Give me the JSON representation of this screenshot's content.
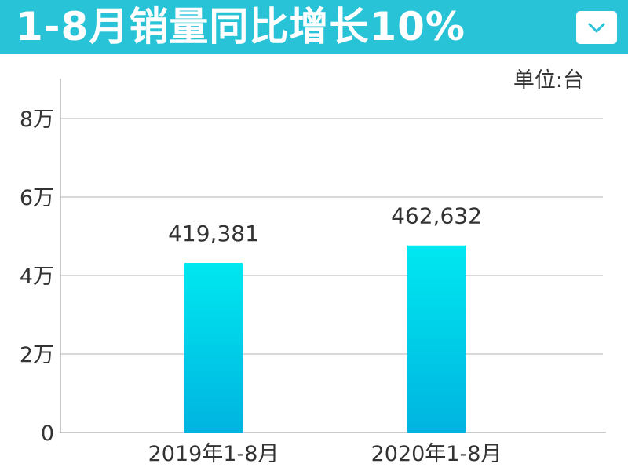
{
  "header": {
    "title": "1-8月销量同比增长10%",
    "accent_color": "#29c3d8",
    "dropdown_icon": "chevron-down-icon"
  },
  "chart_data": {
    "type": "bar",
    "title": "1-8月销量同比增长10%",
    "unit_label": "单位:台",
    "categories": [
      "2019年1-8月",
      "2020年1-8月"
    ],
    "values": [
      419381,
      462632
    ],
    "value_labels": [
      "419,381",
      "462,632"
    ],
    "ylim": [
      0,
      80000
    ],
    "yticks": [
      0,
      20000,
      40000,
      60000,
      80000
    ],
    "ytick_labels": [
      "0",
      "2万",
      "4万",
      "6万",
      "8万"
    ],
    "grid": true,
    "bar_color_top": "#00e8f0",
    "bar_color_bottom": "#00b4e0"
  }
}
